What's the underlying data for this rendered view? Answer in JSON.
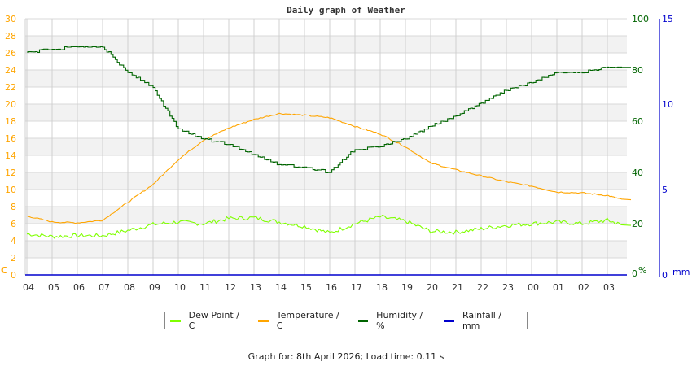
{
  "header": {
    "title": "Daily graph of Weather"
  },
  "footer": {
    "text": "Graph for: 8th April 2026; Load time: 0.11 s"
  },
  "legend": [
    {
      "label": "Dew Point / C",
      "color": "#7fff00"
    },
    {
      "label": "Temperature / C",
      "color": "#ffa500"
    },
    {
      "label": "Humidity / %",
      "color": "#006400"
    },
    {
      "label": "Rainfall / mm",
      "color": "#0000cd"
    }
  ],
  "axes": {
    "left": {
      "unit": "C",
      "color": "#ffa500",
      "ticks": [
        "0",
        "2",
        "4",
        "6",
        "8",
        "10",
        "12",
        "14",
        "16",
        "18",
        "20",
        "22",
        "24",
        "26",
        "28",
        "30"
      ]
    },
    "right_humidity": {
      "unit": "%",
      "color": "#006400",
      "ticks": [
        "0",
        "20",
        "40",
        "60",
        "80",
        "100"
      ]
    },
    "right_rain": {
      "unit": "mm",
      "color": "#0000cd",
      "ticks": [
        "0",
        "5",
        "10",
        "15"
      ]
    },
    "x_ticks": [
      "04",
      "05",
      "06",
      "07",
      "08",
      "09",
      "10",
      "11",
      "12",
      "13",
      "14",
      "15",
      "16",
      "17",
      "18",
      "19",
      "20",
      "21",
      "22",
      "23",
      "00",
      "01",
      "02",
      "03"
    ]
  },
  "chart_data": {
    "type": "line",
    "title": "Daily graph of Weather",
    "xlabel": "",
    "ylabel": "C",
    "ylim": [
      0,
      30
    ],
    "y2lim_humidity": [
      0,
      100
    ],
    "y3lim_rainfall": [
      0,
      15
    ],
    "grid": true,
    "legend_position": "bottom",
    "x": [
      "04",
      "05",
      "06",
      "07",
      "08",
      "09",
      "10",
      "11",
      "12",
      "13",
      "14",
      "15",
      "16",
      "17",
      "18",
      "19",
      "20",
      "21",
      "22",
      "23",
      "00",
      "01",
      "02",
      "03",
      "03:50"
    ],
    "series": [
      {
        "name": "Dew Point / C",
        "axis": "left",
        "values": [
          4.8,
          4.5,
          4.6,
          4.6,
          5.2,
          5.9,
          6.2,
          6.0,
          6.6,
          6.7,
          6.2,
          5.7,
          4.9,
          6.0,
          6.8,
          6.3,
          5.1,
          5.0,
          5.4,
          5.8,
          6.0,
          6.2,
          6.0,
          6.4,
          5.8
        ]
      },
      {
        "name": "Temperature / C",
        "axis": "left",
        "values": [
          6.9,
          6.2,
          6.1,
          6.4,
          8.5,
          10.6,
          13.5,
          15.8,
          17.2,
          18.2,
          18.9,
          18.7,
          18.4,
          17.4,
          16.5,
          15.0,
          13.1,
          12.3,
          11.6,
          10.9,
          10.4,
          9.7,
          9.6,
          9.3,
          8.8
        ]
      },
      {
        "name": "Humidity / %",
        "axis": "right",
        "values": [
          87,
          88,
          89,
          89,
          79,
          73,
          57,
          53,
          51,
          47,
          43,
          42,
          40,
          49,
          50,
          53,
          58,
          62,
          67,
          72,
          75,
          79,
          79,
          81,
          81
        ]
      },
      {
        "name": "Rainfall / mm",
        "axis": "right2",
        "values": [
          0,
          0,
          0,
          0,
          0,
          0,
          0,
          0,
          0,
          0,
          0,
          0,
          0,
          0,
          0,
          0,
          0,
          0,
          0,
          0,
          0,
          0,
          0,
          0,
          0
        ]
      }
    ]
  }
}
